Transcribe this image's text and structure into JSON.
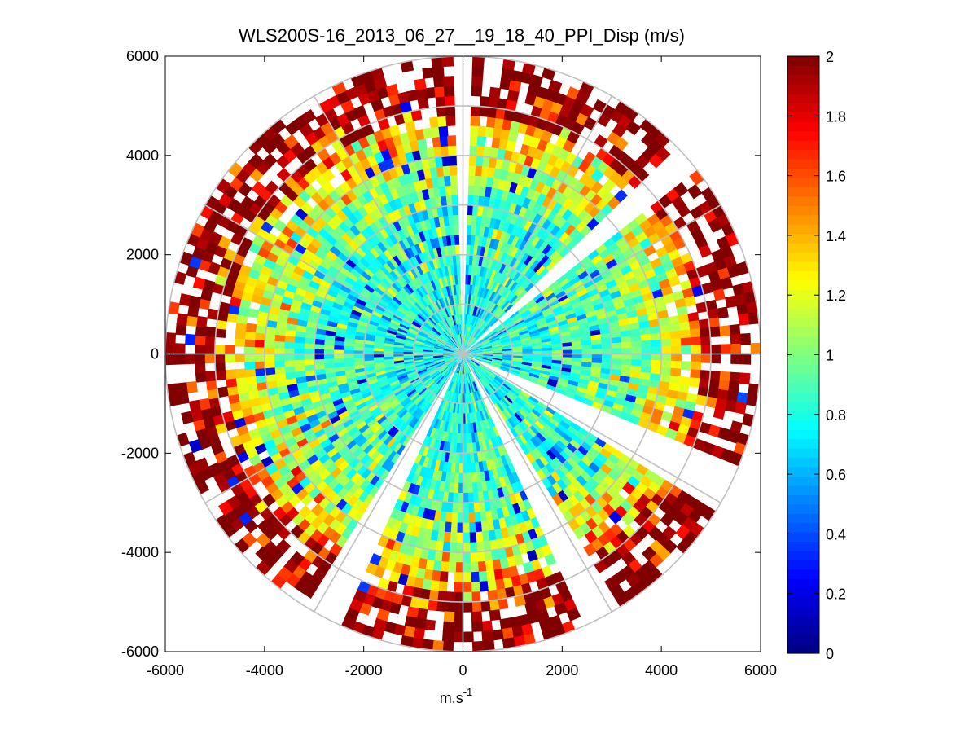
{
  "chart_data": {
    "type": "heatmap",
    "projection": "polar-ppi",
    "title": "WLS200S-16_2013_06_27__19_18_40_PPI_Disp (m/s)",
    "xlabel": "m.s",
    "xlabel_superscript": "-1",
    "ylabel": "",
    "xlim": [
      -6000,
      6000
    ],
    "ylim": [
      -6000,
      6000
    ],
    "x_ticks": [
      -6000,
      -4000,
      -2000,
      0,
      2000,
      4000,
      6000
    ],
    "y_ticks": [
      6000,
      4000,
      2000,
      0,
      -2000,
      -4000,
      -6000
    ],
    "x_tick_labels": [
      "-6000",
      "-4000",
      "-2000",
      "0",
      "2000",
      "4000",
      "6000"
    ],
    "y_tick_labels": [
      "6000",
      "4000",
      "2000",
      "0",
      "-2000",
      "-4000",
      "-6000"
    ],
    "polar_grid": {
      "rings": [
        1000,
        2000,
        3000,
        4000,
        5000,
        6000
      ],
      "spokes_deg": [
        0,
        30,
        60,
        90,
        120,
        150,
        180,
        210,
        240,
        270,
        300,
        330
      ]
    },
    "max_range": 6000,
    "radial_bin": 200,
    "azimuth_bin_deg": 2,
    "gap_sectors_deg": [
      [
        -1,
        1
      ],
      [
        46,
        51
      ],
      [
        113,
        121
      ],
      [
        149,
        155
      ],
      [
        205,
        212
      ]
    ],
    "colorbar": {
      "colormap": "jet",
      "vmin": 0,
      "vmax": 2,
      "ticks": [
        0,
        0.2,
        0.4,
        0.6,
        0.8,
        1,
        1.2,
        1.4,
        1.6,
        1.8,
        2
      ],
      "tick_labels": [
        "0",
        "0.2",
        "0.4",
        "0.6",
        "0.8",
        "1",
        "1.2",
        "1.4",
        "1.6",
        "1.8",
        "2"
      ]
    },
    "value_trend": [
      {
        "range": 1000,
        "typical": 0.8
      },
      {
        "range": 3000,
        "typical": 0.9
      },
      {
        "range": 4500,
        "typical": 1.3
      },
      {
        "range": 5500,
        "typical": 1.9
      }
    ]
  }
}
